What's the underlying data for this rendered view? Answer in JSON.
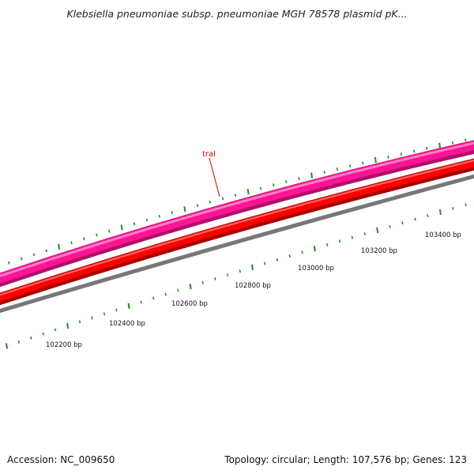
{
  "title": "Klebsiella pneumoniae subsp. pneumoniae MGH 78578 plasmid pK...",
  "gene_label": "traI",
  "scale_labels": [
    "102200 bp",
    "102400 bp",
    "102600 bp",
    "102800 bp",
    "103000 bp",
    "103200 bp",
    "103400 bp"
  ],
  "colors": {
    "forward_genes": "#ff1493",
    "reverse_genes": "#ff0000",
    "backbone": "#777777",
    "ticks": "#2a8a22",
    "gene_label": "#cc0000"
  },
  "footer": {
    "accession": "Accession: NC_009650",
    "summary": "Topology: circular; Length: 107,576 bp; Genes: 123"
  }
}
